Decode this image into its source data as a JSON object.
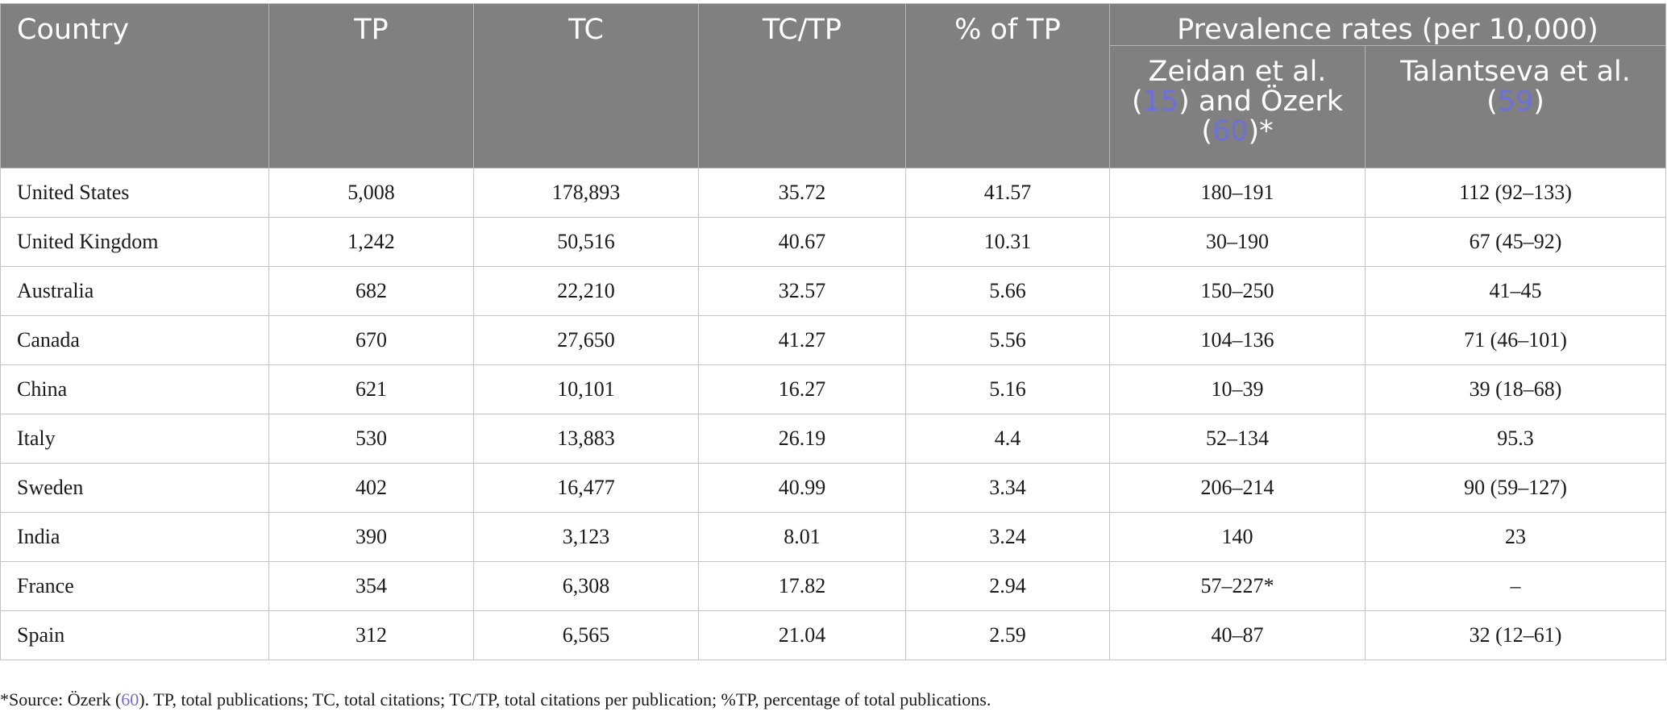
{
  "table": {
    "headers": {
      "country": "Country",
      "tp": "TP",
      "tc": "TC",
      "tctp": "TC/TP",
      "pct_tp": "% of TP",
      "prevalence_group": "Prevalence rates (per 10,000)",
      "zeidan": {
        "line1": "Zeidan et al.",
        "open_paren": "(",
        "ref1": "15",
        "mid": ") and Özerk",
        "open_paren2": "(",
        "ref2": "60",
        "close": ")*"
      },
      "talantseva": {
        "line1": "Talantseva et al.",
        "open_paren": "(",
        "ref": "59",
        "close": ")"
      }
    },
    "rows": [
      {
        "country": "United States",
        "tp": "5,008",
        "tc": "178,893",
        "tctp": "35.72",
        "pct": "41.57",
        "zeidan": "180–191",
        "talantseva": "112 (92–133)"
      },
      {
        "country": "United Kingdom",
        "tp": "1,242",
        "tc": "50,516",
        "tctp": "40.67",
        "pct": "10.31",
        "zeidan": "30–190",
        "talantseva": "67 (45–92)"
      },
      {
        "country": "Australia",
        "tp": "682",
        "tc": "22,210",
        "tctp": "32.57",
        "pct": "5.66",
        "zeidan": "150–250",
        "talantseva": "41–45"
      },
      {
        "country": "Canada",
        "tp": "670",
        "tc": "27,650",
        "tctp": "41.27",
        "pct": "5.56",
        "zeidan": "104–136",
        "talantseva": "71 (46–101)"
      },
      {
        "country": "China",
        "tp": "621",
        "tc": "10,101",
        "tctp": "16.27",
        "pct": "5.16",
        "zeidan": "10–39",
        "talantseva": "39 (18–68)"
      },
      {
        "country": "Italy",
        "tp": "530",
        "tc": "13,883",
        "tctp": "26.19",
        "pct": "4.4",
        "zeidan": "52–134",
        "talantseva": "95.3"
      },
      {
        "country": "Sweden",
        "tp": "402",
        "tc": "16,477",
        "tctp": "40.99",
        "pct": "3.34",
        "zeidan": "206–214",
        "talantseva": "90 (59–127)"
      },
      {
        "country": "India",
        "tp": "390",
        "tc": "3,123",
        "tctp": "8.01",
        "pct": "3.24",
        "zeidan": "140",
        "talantseva": "23"
      },
      {
        "country": "France",
        "tp": "354",
        "tc": "6,308",
        "tctp": "17.82",
        "pct": "2.94",
        "zeidan": "57–227*",
        "talantseva": "–"
      },
      {
        "country": "Spain",
        "tp": "312",
        "tc": "6,565",
        "tctp": "21.04",
        "pct": "2.59",
        "zeidan": "40–87",
        "talantseva": "32 (12–61)"
      }
    ]
  },
  "footnote": {
    "before": "*Source: Özerk (",
    "ref": "60",
    "after": "). TP, total publications; TC, total citations; TC/TP, total citations per publication; %TP, percentage of total publications."
  },
  "colors": {
    "header_bg": "#808080",
    "header_text": "#ffffff",
    "reference_link": "#6f6fd9"
  }
}
